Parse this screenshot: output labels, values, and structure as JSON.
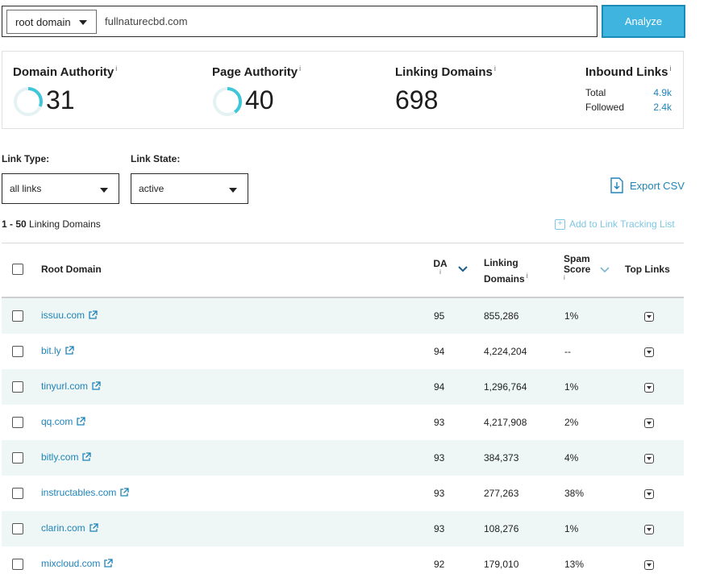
{
  "search": {
    "scope": "root domain",
    "query": "fullnaturecbd.com",
    "analyze_label": "Analyze"
  },
  "metrics": {
    "domain_authority": {
      "label": "Domain Authority",
      "info": "i",
      "value": "31",
      "fraction": 0.31
    },
    "page_authority": {
      "label": "Page Authority",
      "info": "i",
      "value": "40",
      "fraction": 0.4
    },
    "linking_domains": {
      "label": "Linking Domains",
      "info": "i",
      "value": "698"
    },
    "inbound_links": {
      "label": "Inbound Links",
      "info": "i",
      "rows": [
        {
          "label": "Total",
          "value": "4.9k"
        },
        {
          "label": "Followed",
          "value": "2.4k"
        }
      ]
    }
  },
  "filters": {
    "link_type": {
      "label": "Link Type:",
      "value": "all links"
    },
    "link_state": {
      "label": "Link State:",
      "value": "active"
    }
  },
  "export_label": "Export CSV",
  "results": {
    "range": "1 - 50",
    "label": "Linking Domains"
  },
  "tracking_label": "Add to Link Tracking List",
  "table": {
    "headers": {
      "root_domain": "Root Domain",
      "da": "DA",
      "linking_line1": "Linking",
      "linking_line2": "Domains",
      "spam_line1": "Spam",
      "spam_line2": "Score",
      "top_links": "Top Links",
      "info": "i"
    },
    "rows": [
      {
        "domain": "issuu.com",
        "da": "95",
        "linking": "855,286",
        "spam": "1%"
      },
      {
        "domain": "bit.ly",
        "da": "94",
        "linking": "4,224,204",
        "spam": "--"
      },
      {
        "domain": "tinyurl.com",
        "da": "94",
        "linking": "1,296,764",
        "spam": "1%"
      },
      {
        "domain": "qq.com",
        "da": "93",
        "linking": "4,217,908",
        "spam": "2%"
      },
      {
        "domain": "bitly.com",
        "da": "93",
        "linking": "384,373",
        "spam": "4%"
      },
      {
        "domain": "instructables.com",
        "da": "93",
        "linking": "277,263",
        "spam": "38%"
      },
      {
        "domain": "clarin.com",
        "da": "93",
        "linking": "108,276",
        "spam": "1%"
      },
      {
        "domain": "mixcloud.com",
        "da": "92",
        "linking": "179,010",
        "spam": "13%"
      }
    ]
  },
  "colors": {
    "accent": "#3fb4de",
    "link": "#1f84b8",
    "ring": "#3fc6d8",
    "row_alt": "#eef6f6"
  }
}
